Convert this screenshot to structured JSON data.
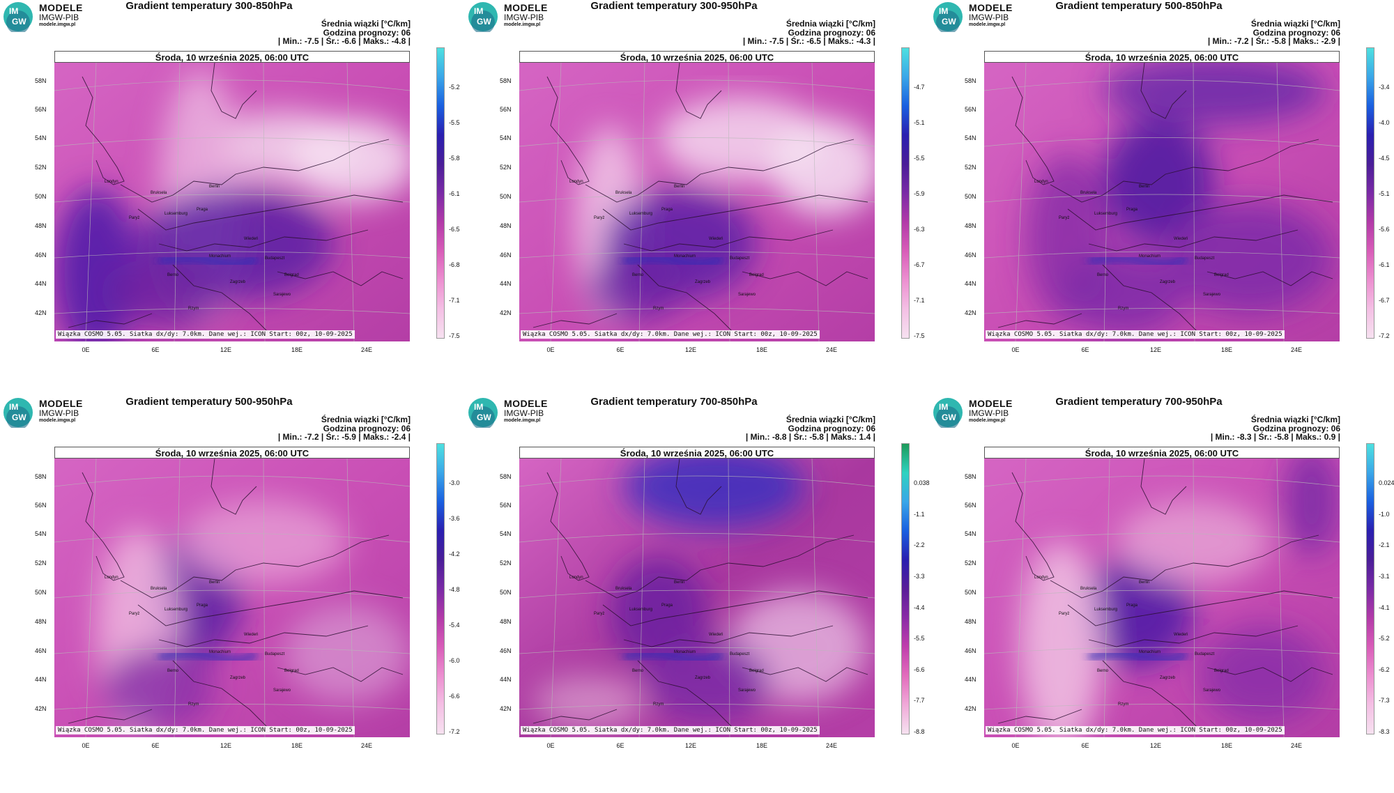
{
  "logo": {
    "line1": "MODELE",
    "line2": "IMGW-PIB",
    "line3": "modele.imgw.pl",
    "mark_top": "IM",
    "mark_bottom": "GW"
  },
  "common": {
    "unit_label": "Średnia wiązki [°C/km]",
    "forecast_hour": "Godzina prognozy: 06",
    "date_header": "Środa, 10 września 2025, 06:00 UTC",
    "footer": "Wiązka COSMO 5.05. Siatka dx/dy: 7.0km. Dane wej.: ICON Start: 00z, 10-09-2025",
    "lat_labels": [
      "58N",
      "56N",
      "54N",
      "52N",
      "50N",
      "48N",
      "46N",
      "44N",
      "42N"
    ],
    "lon_labels": [
      "0E",
      "6E",
      "12E",
      "18E",
      "24E"
    ],
    "cities": [
      "Londyn",
      "Bruksela",
      "Paryż",
      "Luksemburg",
      "Praga",
      "Berlin",
      "Wiedeń",
      "Budapeszt",
      "Zagrzeb",
      "Belgrad",
      "Sarajewo",
      "Rzym",
      "Berno",
      "Monachium"
    ]
  },
  "panels": [
    {
      "title": "Gradient temperatury 300-850hPa",
      "stats": "| Min.: -7.5 | Śr.: -6.6 | Maks.: -4.8 |",
      "scale": [
        "-5.2",
        "-5.5",
        "-5.8",
        "-6.1",
        "-6.5",
        "-6.8",
        "-7.1",
        "-7.5"
      ],
      "palette": "pink"
    },
    {
      "title": "Gradient temperatury 300-950hPa",
      "stats": "| Min.: -7.5 | Śr.: -6.5 | Maks.: -4.3 |",
      "scale": [
        "-4.7",
        "-5.1",
        "-5.5",
        "-5.9",
        "-6.3",
        "-6.7",
        "-7.1",
        "-7.5"
      ],
      "palette": "pink"
    },
    {
      "title": "Gradient temperatury 500-850hPa",
      "stats": "| Min.: -7.2 | Śr.: -5.8 | Maks.: -2.9 |",
      "scale": [
        "-3.4",
        "-4.0",
        "-4.5",
        "-5.1",
        "-5.6",
        "-6.1",
        "-6.7",
        "-7.2"
      ],
      "palette": "pink"
    },
    {
      "title": "Gradient temperatury 500-950hPa",
      "stats": "| Min.: -7.2 | Śr.: -5.9 | Maks.: -2.4 |",
      "scale": [
        "-3.0",
        "-3.6",
        "-4.2",
        "-4.8",
        "-5.4",
        "-6.0",
        "-6.6",
        "-7.2"
      ],
      "palette": "pink"
    },
    {
      "title": "Gradient temperatury 700-850hPa",
      "stats": "| Min.: -8.8 | Śr.: -5.8 | Maks.: 1.4 |",
      "scale": [
        "0.038",
        "-1.1",
        "-2.2",
        "-3.3",
        "-4.4",
        "-5.5",
        "-6.6",
        "-7.7",
        "-8.8"
      ],
      "palette": "blue"
    },
    {
      "title": "Gradient temperatury 700-950hPa",
      "stats": "| Min.: -8.3 | Śr.: -5.8 | Maks.: 0.9 |",
      "scale": [
        "0.024",
        "-1.0",
        "-2.1",
        "-3.1",
        "-4.1",
        "-5.2",
        "-6.2",
        "-7.3",
        "-8.3"
      ],
      "palette": "pink"
    }
  ]
}
